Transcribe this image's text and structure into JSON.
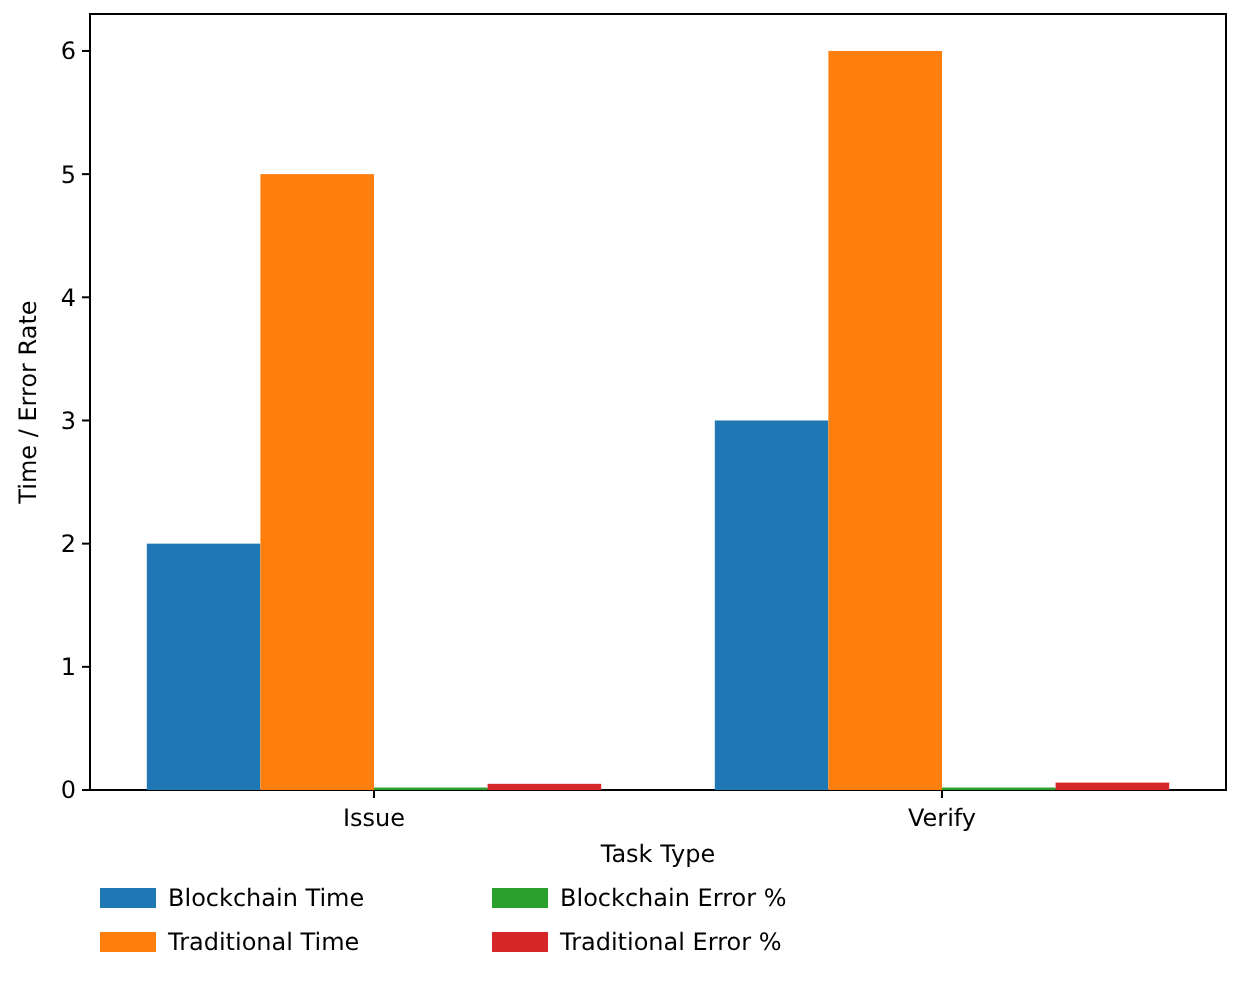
{
  "chart_data": {
    "type": "bar",
    "xlabel": "Task Type",
    "ylabel": "Time / Error Rate",
    "categories": [
      "Issue",
      "Verify"
    ],
    "series": [
      {
        "name": "Blockchain Time",
        "color": "#1f77b4",
        "values": [
          2,
          3
        ]
      },
      {
        "name": "Traditional Time",
        "color": "#ff7f0e",
        "values": [
          5,
          6
        ]
      },
      {
        "name": "Blockchain Error %",
        "color": "#2ca02c",
        "values": [
          0.02,
          0.02
        ]
      },
      {
        "name": "Traditional Error %",
        "color": "#d62728",
        "values": [
          0.05,
          0.06
        ]
      }
    ],
    "ylim": [
      0,
      6.3
    ],
    "yticks": [
      0,
      1,
      2,
      3,
      4,
      5,
      6
    ],
    "grid": false,
    "legend": "bottom"
  }
}
